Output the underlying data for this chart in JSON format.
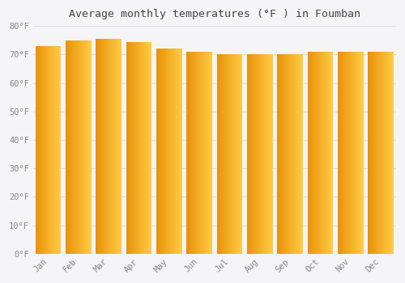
{
  "title": "Average monthly temperatures (°F ) in Foumban",
  "months": [
    "Jan",
    "Feb",
    "Mar",
    "Apr",
    "May",
    "Jun",
    "Jul",
    "Aug",
    "Sep",
    "Oct",
    "Nov",
    "Dec"
  ],
  "values": [
    73,
    75,
    75.5,
    74.5,
    72,
    71,
    70,
    70,
    70,
    71,
    71,
    71
  ],
  "ylim": [
    0,
    80
  ],
  "yticks": [
    0,
    10,
    20,
    30,
    40,
    50,
    60,
    70,
    80
  ],
  "bar_color_left": "#E8920A",
  "bar_color_right": "#FFCC44",
  "background_color": "#F5F5F8",
  "grid_color": "#DDDDEE",
  "tick_label_color": "#888888",
  "title_color": "#444444",
  "bar_width": 0.85,
  "figsize": [
    5.0,
    3.5
  ],
  "dpi": 100
}
